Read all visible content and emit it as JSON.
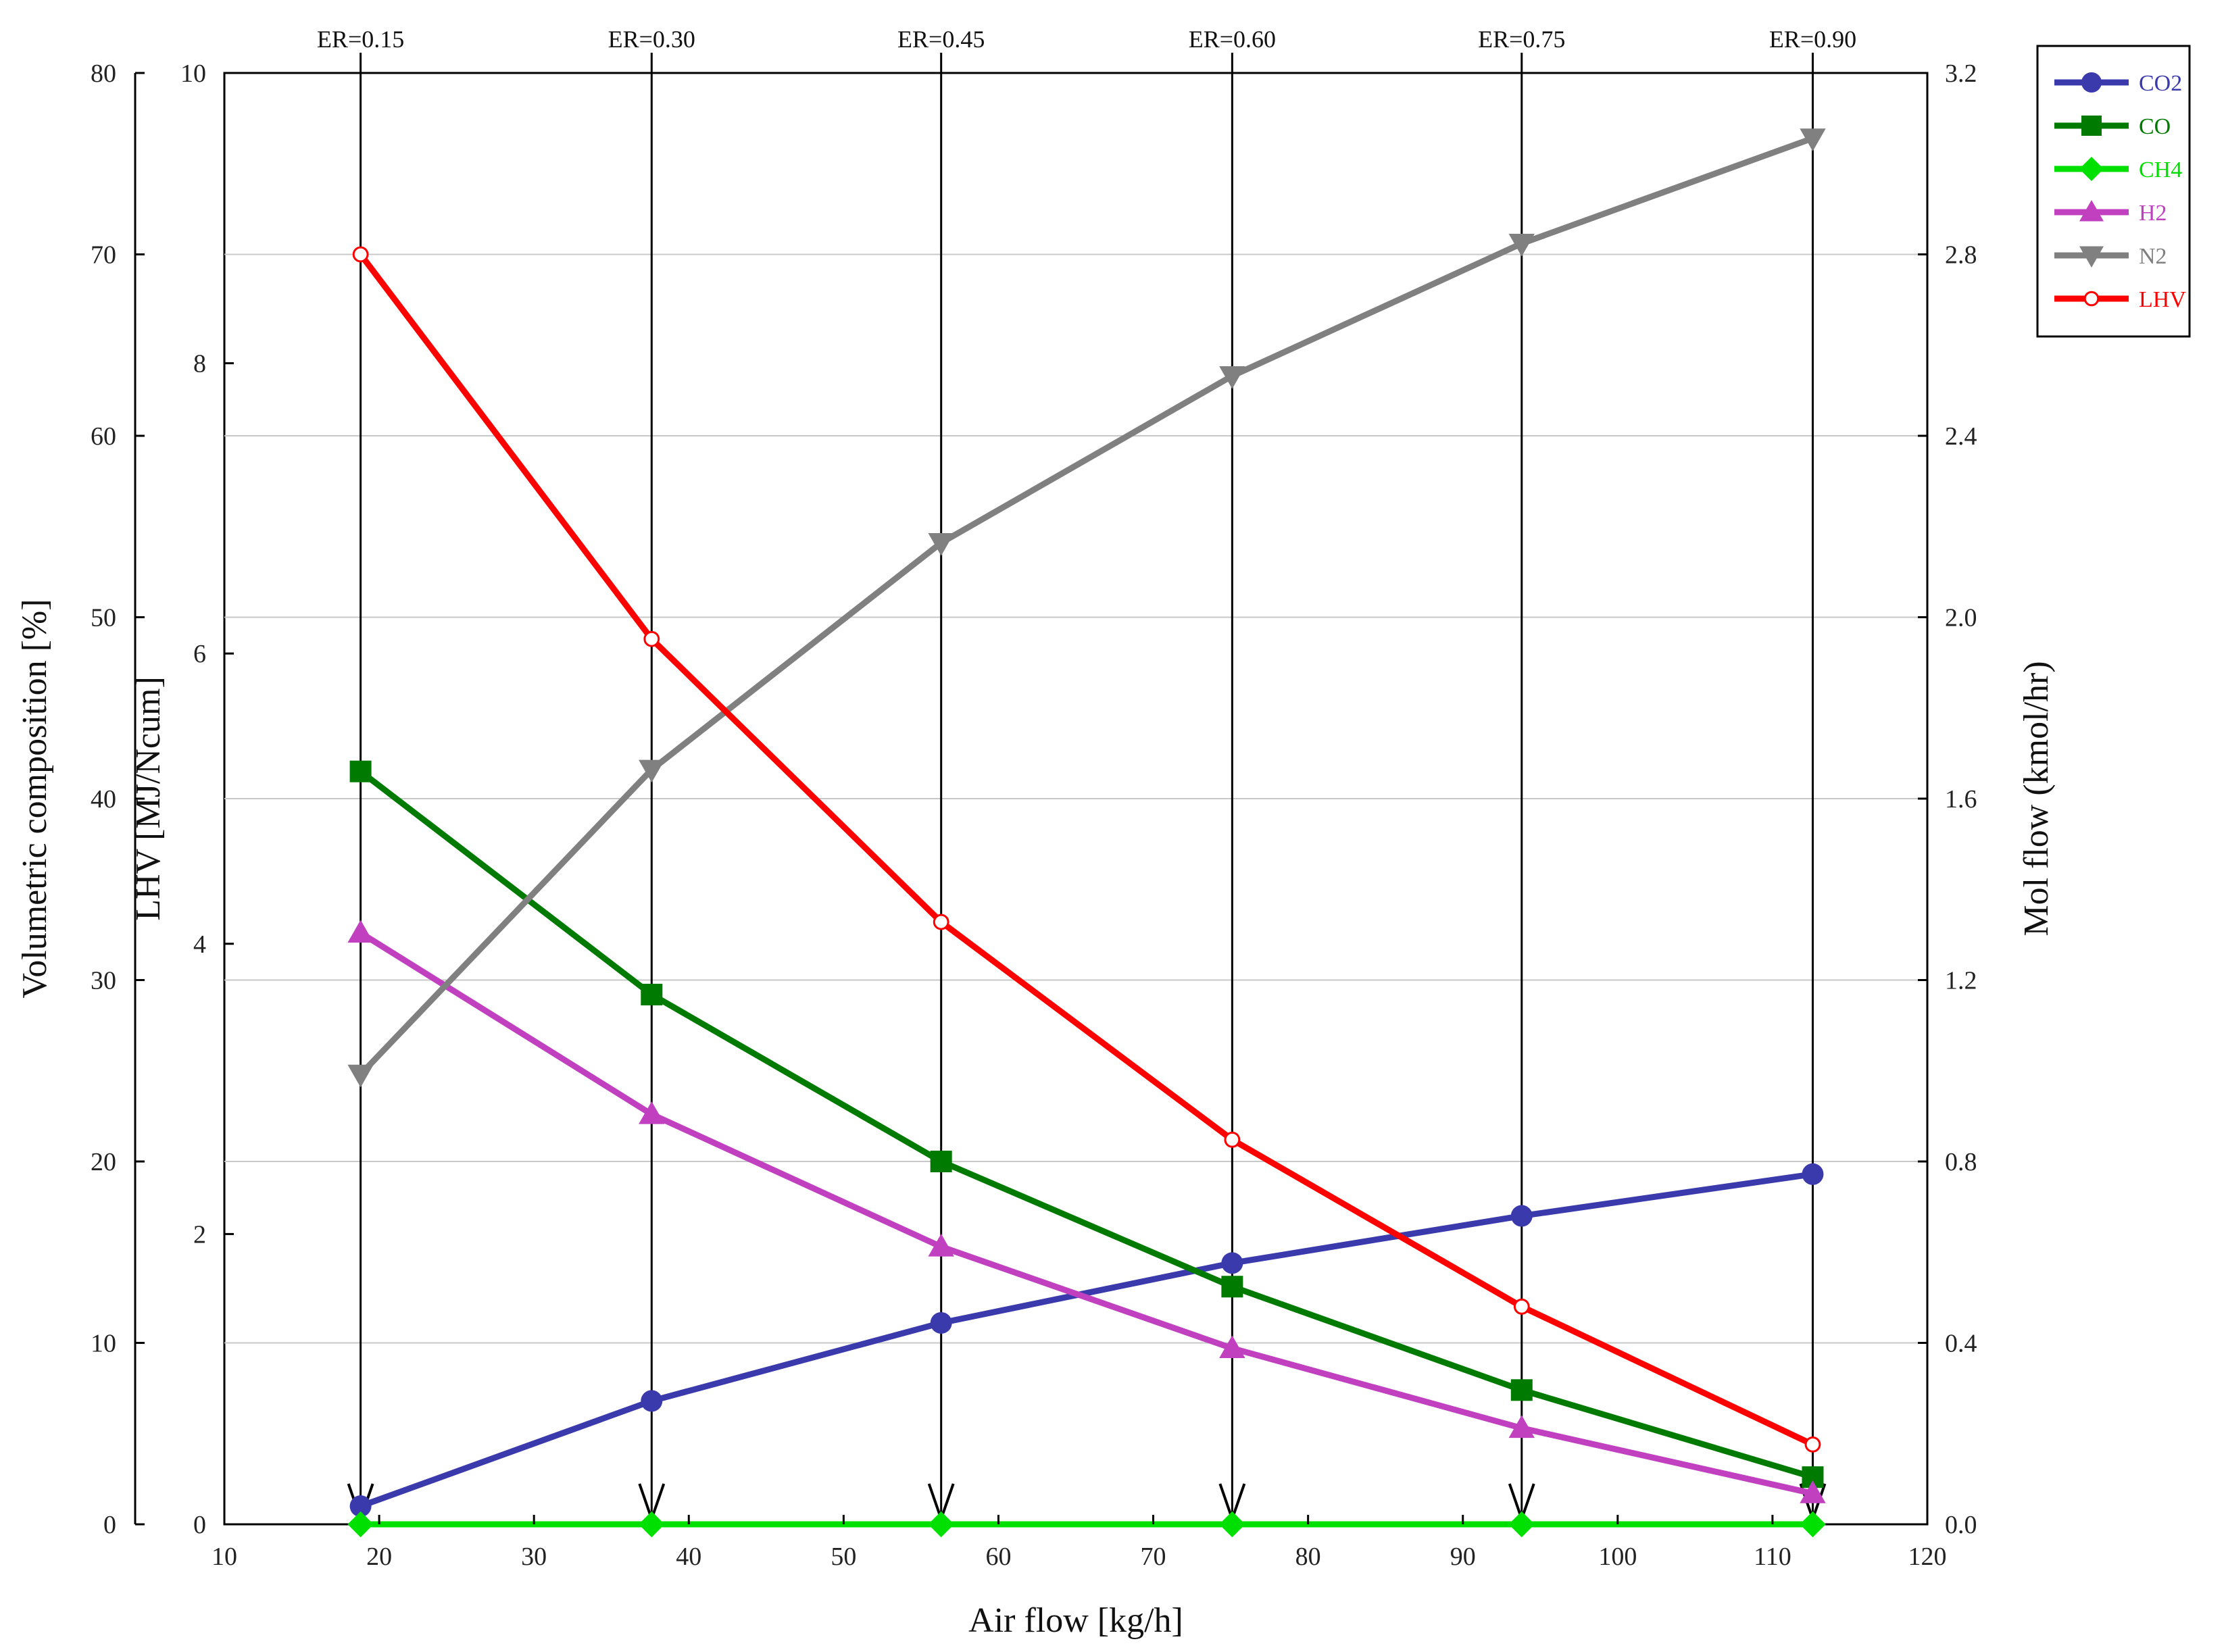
{
  "chart_data": {
    "type": "line",
    "title": "",
    "xlabel": "Air flow [kg/h]",
    "ylabel_left_outer": "Volumetric composition [%]",
    "ylabel_left_inner": "LHV [MJ/Ncum]",
    "ylabel_right": "Mol flow (kmol/hr)",
    "xlim": [
      10,
      120
    ],
    "ylim_composition": [
      0,
      80
    ],
    "ylim_lhv": [
      0,
      10
    ],
    "ylim_molflow": [
      0.0,
      3.2
    ],
    "x_ticks": [
      "10",
      "20",
      "30",
      "40",
      "50",
      "60",
      "70",
      "80",
      "90",
      "100",
      "110",
      "120"
    ],
    "y_ticks_composition": [
      "0",
      "10",
      "20",
      "30",
      "40",
      "50",
      "60",
      "70",
      "80"
    ],
    "y_ticks_lhv": [
      "0",
      "2",
      "4",
      "6",
      "8",
      "10"
    ],
    "y_ticks_molflow": [
      "0.0",
      "0.4",
      "0.8",
      "1.2",
      "1.6",
      "2.0",
      "2.4",
      "2.8",
      "3.2"
    ],
    "grid": true,
    "legend_position": "top-right",
    "x": [
      18.8,
      37.6,
      56.3,
      75.1,
      93.8,
      112.6
    ],
    "er_markers": [
      "ER=0.15",
      "ER=0.30",
      "ER=0.45",
      "ER=0.60",
      "ER=0.75",
      "ER=0.90"
    ],
    "series": [
      {
        "name": "CO2",
        "axis": "composition",
        "color": "#3a3aad",
        "marker": "circle",
        "values": [
          1.0,
          6.8,
          11.1,
          14.4,
          17.0,
          19.3
        ]
      },
      {
        "name": "CO",
        "axis": "composition",
        "color": "#007a00",
        "marker": "square",
        "values": [
          41.5,
          29.2,
          20.0,
          13.1,
          7.4,
          2.6
        ]
      },
      {
        "name": "CH4",
        "axis": "composition",
        "color": "#00e000",
        "marker": "diamond",
        "values": [
          0.0,
          0.0,
          0.0,
          0.0,
          0.0,
          0.0
        ]
      },
      {
        "name": "H2",
        "axis": "composition",
        "color": "#c040c0",
        "marker": "triangle-up",
        "values": [
          32.6,
          22.6,
          15.3,
          9.7,
          5.3,
          1.7
        ]
      },
      {
        "name": "N2",
        "axis": "composition",
        "color": "#808080",
        "marker": "triangle-down",
        "values": [
          24.8,
          41.6,
          54.1,
          63.3,
          70.6,
          76.4
        ]
      },
      {
        "name": "LHV",
        "axis": "lhv",
        "color": "#ff0000",
        "marker": "open-circle",
        "values": [
          8.75,
          6.1,
          4.15,
          2.65,
          1.5,
          0.55
        ]
      }
    ]
  }
}
